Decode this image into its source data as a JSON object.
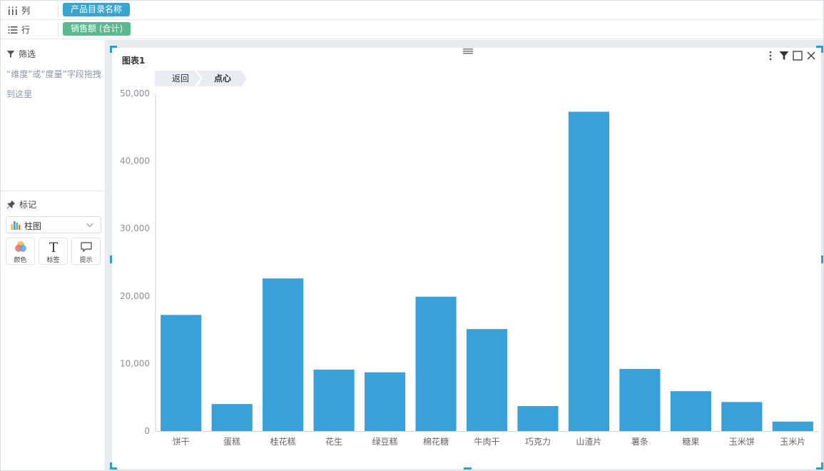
{
  "shelves": {
    "columns": {
      "label": "列",
      "pill": "产品目录名称"
    },
    "rows": {
      "label": "行",
      "pill": "销售额 (合计)"
    }
  },
  "filter": {
    "title": "筛选",
    "hint": "“维度”或“度量”字段拖拽到这里"
  },
  "marks": {
    "title": "标记",
    "type": "柱图",
    "buttons": [
      {
        "label": "颜色",
        "icon": "color-palette-icon"
      },
      {
        "label": "标签",
        "icon": "text-t-icon"
      },
      {
        "label": "提示",
        "icon": "speech-bubble-icon"
      }
    ]
  },
  "chart_card": {
    "title": "图表1",
    "breadcrumb": {
      "back": "返回",
      "current": "点心"
    },
    "tools": [
      "more-vertical-icon",
      "filter-icon",
      "maximize-icon",
      "close-icon"
    ]
  },
  "colors": {
    "accent": "#2a9fd6",
    "bar": "#3aa0da",
    "dimension_pill": "#39a5cf",
    "measure_pill": "#5cb98d"
  },
  "chart_data": {
    "type": "bar",
    "title": "",
    "xlabel": "",
    "ylabel": "",
    "categories": [
      "饼干",
      "蛋糕",
      "桂花糕",
      "花生",
      "绿豆糕",
      "棉花糖",
      "牛肉干",
      "巧克力",
      "山渣片",
      "薯条",
      "糖果",
      "玉米饼",
      "玉米片"
    ],
    "values": [
      17200,
      4000,
      22600,
      9100,
      8700,
      19900,
      15100,
      3700,
      47300,
      9200,
      5900,
      4300,
      1400
    ],
    "ylim": [
      0,
      50000
    ],
    "yticks": [
      0,
      10000,
      20000,
      30000,
      40000,
      50000
    ],
    "ytick_labels": [
      "0",
      "10,000",
      "20,000",
      "30,000",
      "40,000",
      "50,000"
    ],
    "grid": false,
    "legend": "none"
  }
}
